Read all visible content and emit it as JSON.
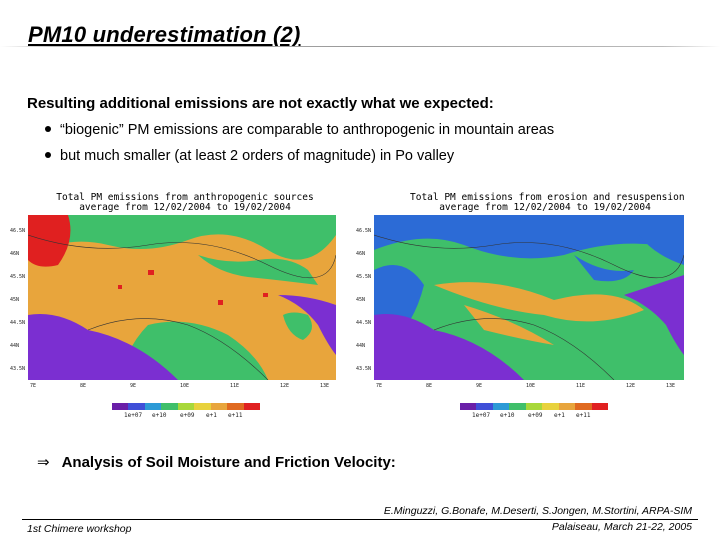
{
  "title": "PM10 underestimation (2)",
  "intro": "Resulting additional emissions are not exactly what we expected:",
  "bullets": [
    "“biogenic” PM emissions are comparable to anthropogenic in mountain areas",
    "but much smaller (at least 2 orders of magnitude) in Po valley"
  ],
  "maps": [
    {
      "title_line1": "Total PM emissions from anthropogenic sources",
      "title_line2": "average from 12/02/2004 to 19/02/2004",
      "colorbar_labels": [
        "1e+07",
        "e+10",
        "e+09",
        "e+1",
        "e+11"
      ]
    },
    {
      "title_line1": "Total PM emissions from erosion and resuspension",
      "title_line2": "average from 12/02/2004 to 19/02/2004",
      "colorbar_labels": [
        "1e+07",
        "e+10",
        "e+09",
        "e+1",
        "e+11"
      ]
    }
  ],
  "lat_labels": [
    "46.5N",
    "46N",
    "45.5N",
    "45N",
    "44.5N",
    "44N",
    "43.5N"
  ],
  "lon_labels": [
    "7E",
    "8E",
    "9E",
    "10E",
    "11E",
    "12E",
    "13E"
  ],
  "colors": {
    "land_orange": "#e8a53c",
    "sea_purple": "#7b2fd1",
    "green": "#3fbf6a",
    "blue": "#2c6bd6",
    "red": "#e02020"
  },
  "analysis": "Analysis of Soil Moisture and Friction Velocity:",
  "footer": {
    "left": "1st Chimere workshop",
    "right_line1": "E.Minguzzi, G.Bonafe, M.Deserti, S.Jongen, M.Stortini, ARPA-SIM",
    "right_line2": "Palaiseau, March 21-22, 2005"
  }
}
